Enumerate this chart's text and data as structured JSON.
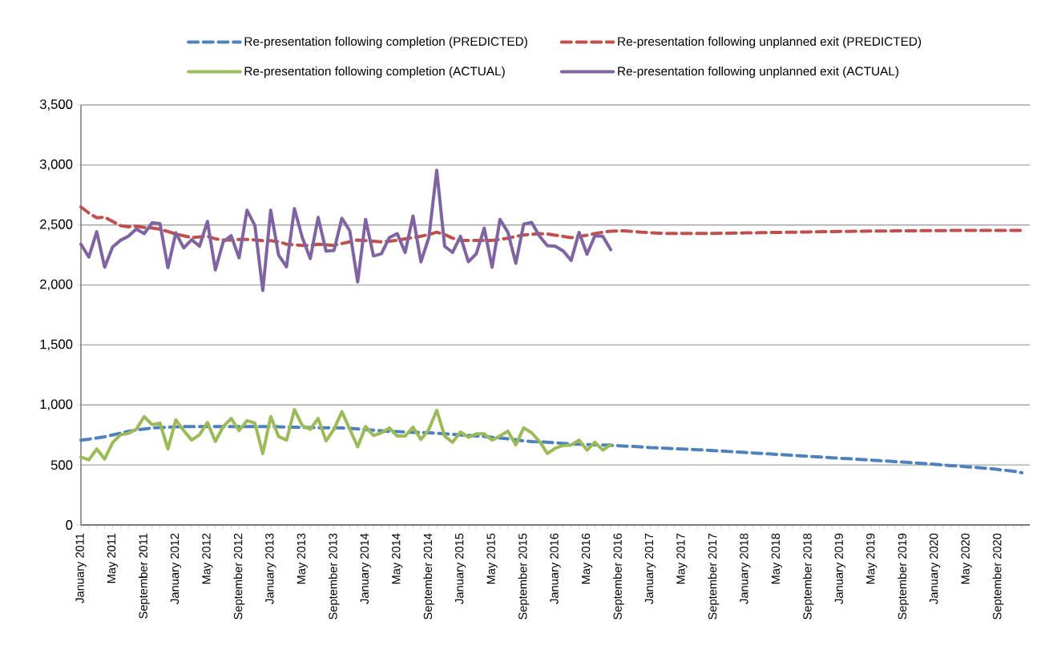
{
  "chart_data": {
    "type": "line",
    "categories": [
      "January 2011",
      null,
      null,
      null,
      "May 2011",
      null,
      null,
      null,
      "September 2011",
      null,
      null,
      null,
      "January 2012",
      null,
      null,
      null,
      "May 2012",
      null,
      null,
      null,
      "September 2012",
      null,
      null,
      null,
      "January 2013",
      null,
      null,
      null,
      "May 2013",
      null,
      null,
      null,
      "September 2013",
      null,
      null,
      null,
      "January 2014",
      null,
      null,
      null,
      "May 2014",
      null,
      null,
      null,
      "September 2014",
      null,
      null,
      null,
      "January 2015",
      null,
      null,
      null,
      "May 2015",
      null,
      null,
      null,
      "September 2015",
      null,
      null,
      null,
      "January 2016",
      null,
      null,
      null,
      "May 2016",
      null,
      null,
      null,
      "September 2016",
      null,
      null,
      null,
      "January 2017",
      null,
      null,
      null,
      "May 2017",
      null,
      null,
      null,
      "September 2017",
      null,
      null,
      null,
      "January 2018",
      null,
      null,
      null,
      "May 2018",
      null,
      null,
      null,
      "September 2018",
      null,
      null,
      null,
      "January 2019",
      null,
      null,
      null,
      "May 2019",
      null,
      null,
      null,
      "September 2019",
      null,
      null,
      null,
      "January 2020",
      null,
      null,
      null,
      "May 2020",
      null,
      null,
      null,
      "September 2020",
      null,
      null,
      null
    ],
    "series": [
      {
        "name": "Re-presentation following completion (PREDICTED)",
        "color": "#4f81bd",
        "line_style": "dashed",
        "values": [
          707,
          715,
          725,
          735,
          750,
          765,
          780,
          790,
          800,
          808,
          812,
          815,
          818,
          820,
          820,
          820,
          820,
          820,
          820,
          820,
          820,
          820,
          820,
          820,
          820,
          818,
          816,
          815,
          813,
          812,
          810,
          810,
          810,
          809,
          805,
          800,
          795,
          790,
          785,
          780,
          778,
          775,
          772,
          770,
          768,
          764,
          760,
          755,
          750,
          746,
          742,
          738,
          730,
          725,
          718,
          710,
          700,
          695,
          692,
          689,
          685,
          680,
          676,
          673,
          670,
          668,
          667,
          664,
          660,
          657,
          654,
          650,
          645,
          642,
          639,
          636,
          633,
          630,
          627,
          624,
          620,
          616,
          612,
          608,
          604,
          600,
          596,
          592,
          588,
          584,
          580,
          576,
          572,
          568,
          564,
          560,
          556,
          552,
          548,
          544,
          540,
          536,
          532,
          528,
          524,
          520,
          515,
          510,
          505,
          500,
          495,
          490,
          485,
          480,
          475,
          470,
          462,
          455,
          448,
          435
        ]
      },
      {
        "name": "Re-presentation following unplanned exit (PREDICTED)",
        "color": "#c0504d",
        "line_style": "dashed",
        "values": [
          2650,
          2600,
          2560,
          2565,
          2530,
          2495,
          2485,
          2490,
          2480,
          2475,
          2465,
          2445,
          2425,
          2410,
          2395,
          2400,
          2405,
          2385,
          2375,
          2375,
          2380,
          2380,
          2375,
          2370,
          2370,
          2360,
          2340,
          2335,
          2330,
          2330,
          2340,
          2335,
          2330,
          2345,
          2360,
          2375,
          2370,
          2365,
          2360,
          2365,
          2372,
          2385,
          2395,
          2406,
          2420,
          2440,
          2420,
          2390,
          2372,
          2372,
          2372,
          2372,
          2372,
          2380,
          2390,
          2405,
          2417,
          2422,
          2428,
          2425,
          2415,
          2405,
          2395,
          2405,
          2415,
          2428,
          2440,
          2448,
          2451,
          2450,
          2445,
          2440,
          2435,
          2432,
          2430,
          2430,
          2430,
          2430,
          2430,
          2430,
          2430,
          2432,
          2432,
          2433,
          2434,
          2435,
          2436,
          2437,
          2438,
          2439,
          2440,
          2441,
          2442,
          2443,
          2444,
          2445,
          2446,
          2447,
          2448,
          2448,
          2449,
          2450,
          2450,
          2451,
          2451,
          2452,
          2452,
          2453,
          2453,
          2453,
          2454,
          2454,
          2454,
          2455,
          2455,
          2455,
          2455,
          2455,
          2455,
          2455
        ]
      },
      {
        "name": "Re-presentation following completion (ACTUAL)",
        "color": "#9bbb59",
        "line_style": "solid",
        "values": [
          565,
          543,
          633,
          550,
          685,
          752,
          764,
          797,
          903,
          836,
          849,
          633,
          876,
          786,
          707,
          752,
          854,
          696,
          820,
          887,
          786,
          869,
          849,
          595,
          903,
          737,
          707,
          962,
          827,
          797,
          887,
          700,
          797,
          944,
          797,
          651,
          820,
          746,
          768,
          809,
          741,
          741,
          815,
          712,
          797,
          955,
          741,
          689,
          775,
          730,
          759,
          759,
          707,
          741,
          782,
          667,
          809,
          768,
          696,
          595,
          640,
          662,
          667,
          707,
          624,
          689,
          624,
          669,
          null,
          null,
          null,
          null,
          null,
          null,
          null,
          null,
          null,
          null,
          null,
          null,
          null,
          null,
          null,
          null,
          null,
          null,
          null,
          null,
          null,
          null,
          null,
          null,
          null,
          null,
          null,
          null,
          null,
          null,
          null,
          null,
          null,
          null,
          null,
          null,
          null,
          null,
          null,
          null,
          null,
          null,
          null,
          null,
          null,
          null,
          null,
          null,
          null,
          null,
          null,
          null
        ]
      },
      {
        "name": "Re-presentation following unplanned exit (ACTUAL)",
        "color": "#8064a2",
        "line_style": "solid",
        "values": [
          2339,
          2233,
          2444,
          2148,
          2316,
          2372,
          2406,
          2466,
          2428,
          2518,
          2511,
          2144,
          2435,
          2309,
          2377,
          2323,
          2529,
          2126,
          2361,
          2410,
          2226,
          2623,
          2496,
          1953,
          2623,
          2249,
          2152,
          2637,
          2395,
          2220,
          2563,
          2283,
          2287,
          2556,
          2451,
          2025,
          2547,
          2242,
          2260,
          2395,
          2428,
          2271,
          2574,
          2193,
          2395,
          2955,
          2323,
          2271,
          2406,
          2193,
          2260,
          2473,
          2148,
          2547,
          2439,
          2181,
          2507,
          2522,
          2406,
          2327,
          2323,
          2283,
          2205,
          2439,
          2256,
          2410,
          2406,
          2294,
          null,
          null,
          null,
          null,
          null,
          null,
          null,
          null,
          null,
          null,
          null,
          null,
          null,
          null,
          null,
          null,
          null,
          null,
          null,
          null,
          null,
          null,
          null,
          null,
          null,
          null,
          null,
          null,
          null,
          null,
          null,
          null,
          null,
          null,
          null,
          null,
          null,
          null,
          null,
          null,
          null,
          null,
          null,
          null,
          null,
          null,
          null,
          null,
          null,
          null,
          null,
          null
        ]
      }
    ],
    "ylim": [
      0,
      3500
    ],
    "yticks": [
      0,
      500,
      {
        "value": 1000,
        "label": "1,000"
      },
      {
        "value": 1500,
        "label": "1,500"
      },
      {
        "value": 2000,
        "label": "2,000"
      },
      {
        "value": 2500,
        "label": "2,500"
      },
      {
        "value": 3000,
        "label": "3,000"
      },
      {
        "value": 3500,
        "label": "3,500"
      }
    ],
    "grid": "y",
    "legend": "top"
  }
}
